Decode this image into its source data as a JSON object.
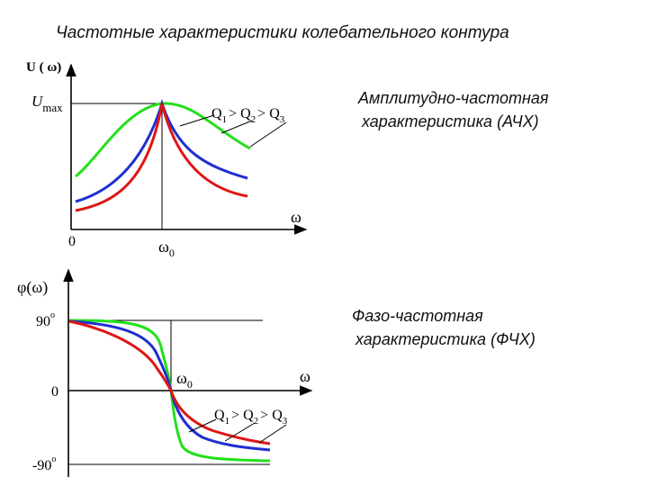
{
  "title": "Частотные  характеристики колебательного контура",
  "afc": {
    "y_axis": "U ( ω)",
    "umax_u": "U",
    "umax_sub": "max",
    "origin": "0",
    "x_axis": "ω",
    "omega0_sym": "ω",
    "omega0_sub": "0",
    "q_label": {
      "q1": "Q",
      "s1": "1",
      "gt1": ">",
      "q2": "Q",
      "s2": "2",
      "gt2": ">",
      "q3": "Q",
      "s3": "3"
    },
    "caption_line1": "Амплитудно-частотная",
    "caption_line2": "характеристика (АЧХ)"
  },
  "pfc": {
    "y_axis": "φ(ω)",
    "top_value": "90",
    "top_deg": "o",
    "zero": "0",
    "bottom_value": "-90",
    "bottom_deg": "o",
    "x_axis": "ω",
    "omega0_sym": "ω",
    "omega0_sub": "0",
    "q_label": {
      "q1": "Q",
      "s1": "1",
      "gt1": ">",
      "q2": "Q",
      "s2": "2",
      "gt2": ">",
      "q3": "Q",
      "s3": "3"
    },
    "caption_line1": "Фазо-частотная",
    "caption_line2": "характеристика (ФЧХ)"
  },
  "colors": {
    "green": "#22e01a",
    "blue": "#1f2fd0",
    "red": "#e01515",
    "axis": "#000000"
  }
}
